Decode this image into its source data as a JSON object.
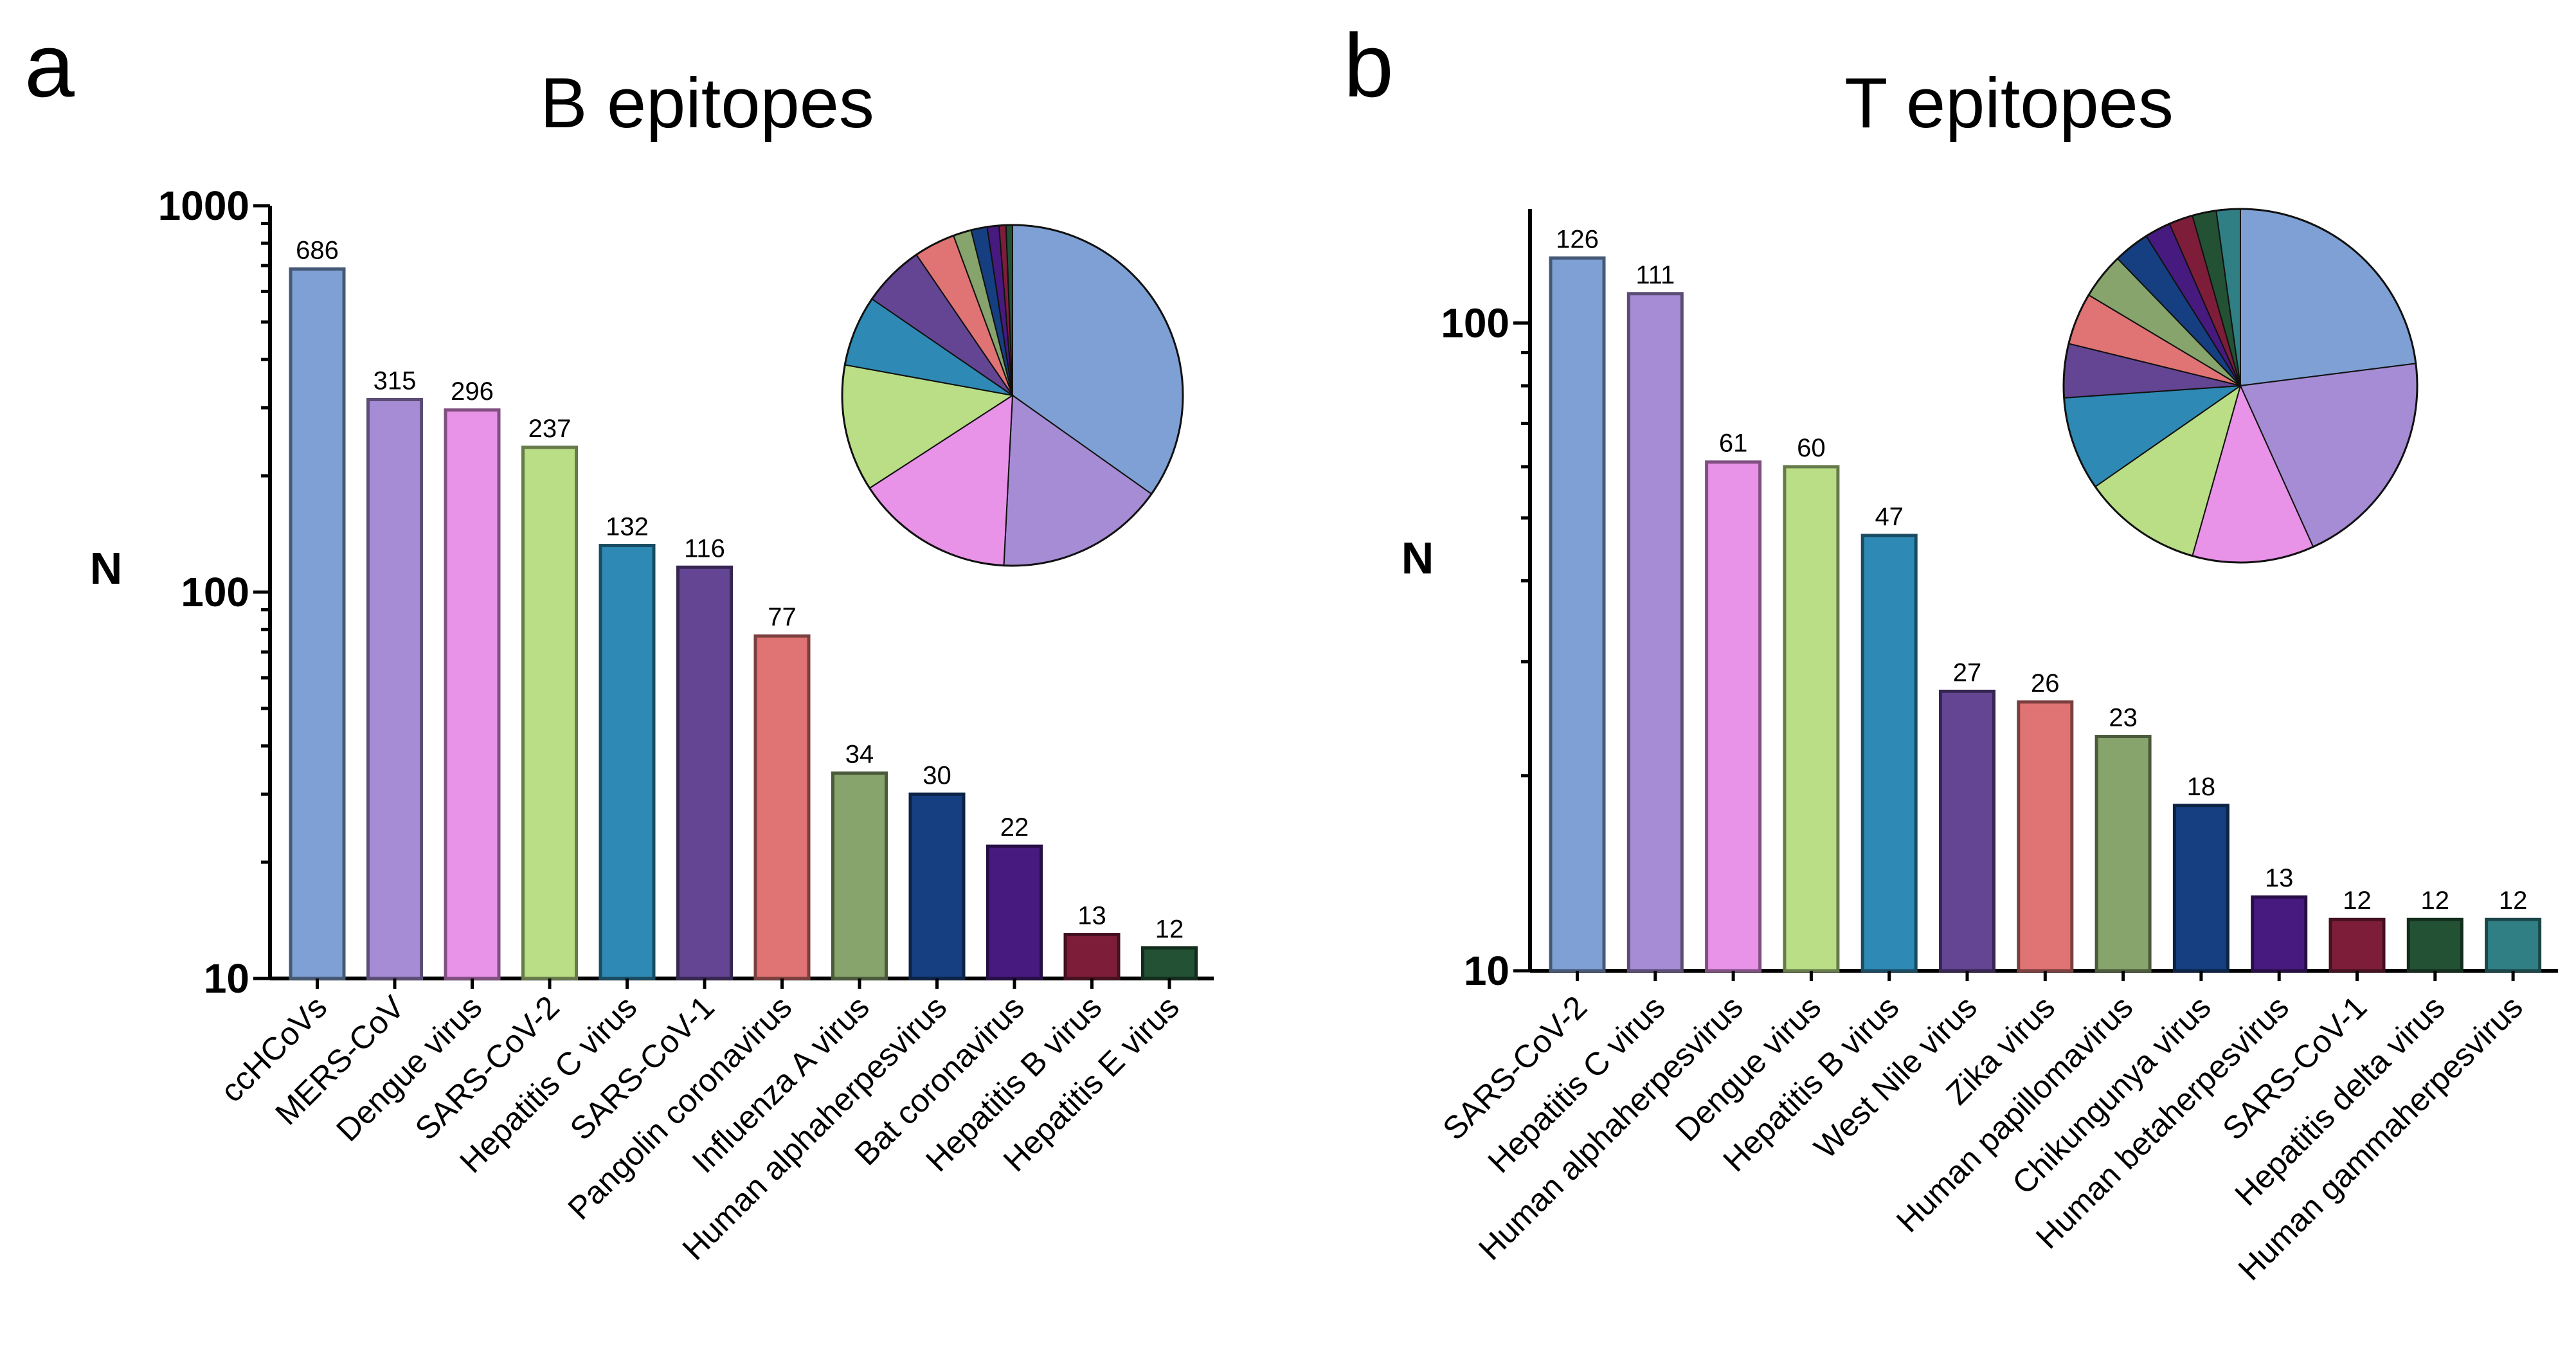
{
  "chart_data": [
    {
      "type": "bar",
      "panel": "a",
      "title": "B epitopes",
      "ylabel": "N",
      "yscale": "log",
      "ylim": [
        10,
        1000
      ],
      "yticks": [
        {
          "value": 10,
          "label": "10"
        },
        {
          "value": 100,
          "label": "100"
        },
        {
          "value": 1000,
          "label": "1000"
        }
      ],
      "categories": [
        "ccHCoVs",
        "MERS-CoV",
        "Dengue virus",
        "SARS-CoV-2",
        "Hepatitis C virus",
        "SARS-CoV-1",
        "Pangolin coronavirus",
        "Influenza A virus",
        "Human alphaherpesvirus",
        "Bat coronavirus",
        "Hepatitis B virus",
        "Hepatitis E virus"
      ],
      "values": [
        686,
        315,
        296,
        237,
        132,
        116,
        77,
        34,
        30,
        22,
        13,
        12
      ],
      "colors": [
        "#7ea0d4",
        "#a68cd4",
        "#e892e8",
        "#b9de86",
        "#2e8ab4",
        "#634594",
        "#e07373",
        "#87a46c",
        "#153f80",
        "#471a80",
        "#7d1d3a",
        "#235134"
      ],
      "inset": {
        "type": "pie",
        "legend": "none"
      }
    },
    {
      "type": "bar",
      "panel": "b",
      "title": "T epitopes",
      "ylabel": "N",
      "yscale": "log",
      "ylim": [
        10,
        150
      ],
      "yticks": [
        {
          "value": 10,
          "label": "10"
        },
        {
          "value": 100,
          "label": "100"
        }
      ],
      "categories": [
        "SARS-CoV-2",
        "Hepatitis C virus",
        "Human alphaherpesvirus",
        "Dengue virus",
        "Hepatitis B virus",
        "West Nile virus",
        "Zika virus",
        "Human papillomavirus",
        "Chikungunya virus",
        "Human betaherpesvirus",
        "SARS-CoV-1",
        "Hepatitis delta virus",
        "Human gammaherpesvirus"
      ],
      "values": [
        126,
        111,
        61,
        60,
        47,
        27,
        26,
        23,
        18,
        13,
        12,
        12,
        12
      ],
      "colors": [
        "#7ea0d4",
        "#a68cd4",
        "#e892e8",
        "#b9de86",
        "#2e8ab4",
        "#634594",
        "#e07373",
        "#87a46c",
        "#153f80",
        "#471a80",
        "#7d1d3a",
        "#235134",
        "#2f7f85"
      ],
      "inset": {
        "type": "pie",
        "legend": "none"
      }
    }
  ]
}
